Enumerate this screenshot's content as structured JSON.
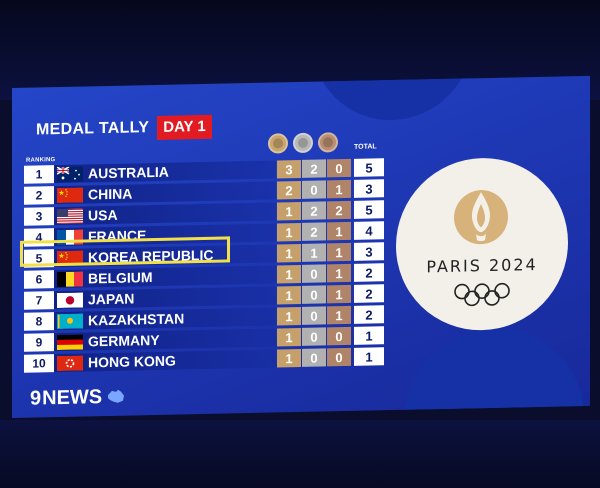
{
  "header": {
    "title": "MEDAL TALLY",
    "day_badge": "DAY 1",
    "ranking_label": "RANKING",
    "total_label": "TOTAL"
  },
  "rows": [
    {
      "rank": "1",
      "country": "AUSTRALIA",
      "flag": "australia-flag",
      "gold": "3",
      "silver": "2",
      "bronze": "0",
      "total": "5"
    },
    {
      "rank": "2",
      "country": "CHINA",
      "flag": "china-flag",
      "gold": "2",
      "silver": "0",
      "bronze": "1",
      "total": "3"
    },
    {
      "rank": "3",
      "country": "USA",
      "flag": "usa-flag",
      "gold": "1",
      "silver": "2",
      "bronze": "2",
      "total": "5"
    },
    {
      "rank": "4",
      "country": "FRANCE",
      "flag": "france-flag",
      "gold": "1",
      "silver": "2",
      "bronze": "1",
      "total": "4"
    },
    {
      "rank": "5",
      "country": "KOREA REPUBLIC",
      "flag": "china-flag",
      "gold": "1",
      "silver": "1",
      "bronze": "1",
      "total": "3",
      "highlighted": true
    },
    {
      "rank": "6",
      "country": "BELGIUM",
      "flag": "belgium-flag",
      "gold": "1",
      "silver": "0",
      "bronze": "1",
      "total": "2"
    },
    {
      "rank": "7",
      "country": "JAPAN",
      "flag": "japan-flag",
      "gold": "1",
      "silver": "0",
      "bronze": "1",
      "total": "2"
    },
    {
      "rank": "8",
      "country": "KAZAKHSTAN",
      "flag": "kazakhstan-flag",
      "gold": "1",
      "silver": "0",
      "bronze": "1",
      "total": "2"
    },
    {
      "rank": "9",
      "country": "GERMANY",
      "flag": "germany-flag",
      "gold": "1",
      "silver": "0",
      "bronze": "0",
      "total": "1"
    },
    {
      "rank": "10",
      "country": "HONG KONG",
      "flag": "hong-kong-flag",
      "gold": "1",
      "silver": "0",
      "bronze": "0",
      "total": "1"
    }
  ],
  "logo": {
    "text": "PARIS 2024",
    "icon": "paris-2024-flame-icon"
  },
  "broadcaster": {
    "nine": "9",
    "news": "NEWS",
    "icon": "australia-map-icon"
  },
  "colors": {
    "screen_blue": "#2446c8",
    "highlight_yellow": "#f2e04a",
    "day_red": "#e21b23",
    "gold": "#c6a06a",
    "silver": "#b1b1b1",
    "bronze": "#b08468"
  }
}
